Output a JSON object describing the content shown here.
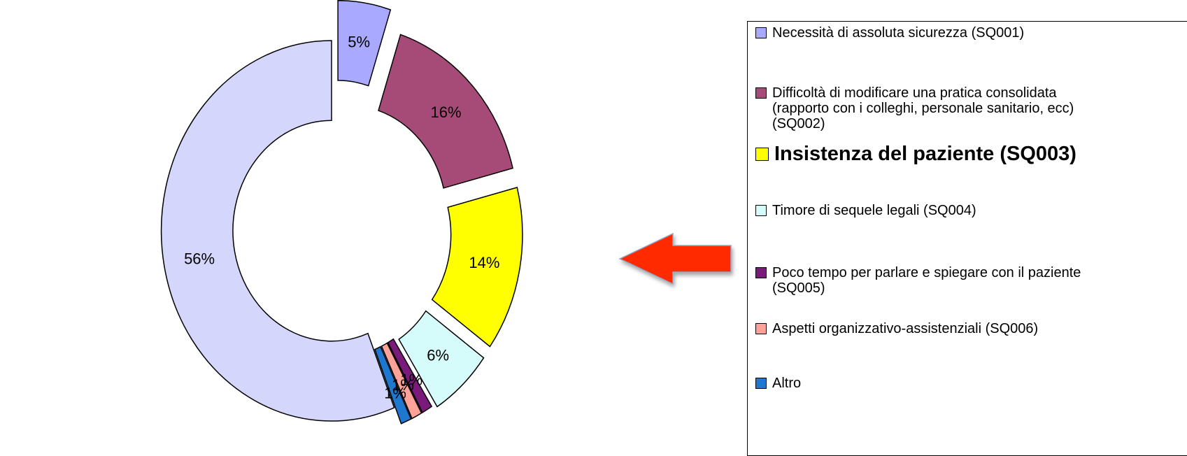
{
  "chart_data": {
    "type": "pie",
    "style": "exploded donut",
    "title": "",
    "legend_position": "right",
    "slices": [
      {
        "label": "Necessità di assoluta sicurezza (SQ001)",
        "value": 5,
        "display": "5%",
        "color": "#A9AAFF"
      },
      {
        "label": "Difficoltà di modificare una pratica consolidata\n(rapporto con i colleghi, personale sanitario, ecc)\n(SQ002)",
        "value": 16,
        "display": "16%",
        "color": "#A64A78"
      },
      {
        "label": "Insistenza del paziente (SQ003)",
        "value": 14,
        "display": "14%",
        "color": "#FFFF00",
        "emphasized": true
      },
      {
        "label": "Timore di sequele legali (SQ004)",
        "value": 6,
        "display": "6%",
        "color": "#D5FBFB"
      },
      {
        "label": "Poco tempo per parlare e spiegare con il paziente\n(SQ005)",
        "value": 1,
        "display": "1%",
        "color": "#7A1A7A"
      },
      {
        "label": "Aspetti organizzativo-assistenziali (SQ006)",
        "value": 1,
        "display": "1%",
        "color": "#FFA29A"
      },
      {
        "label": "Altro",
        "value": 1,
        "display": "1%",
        "color": "#1E78D0"
      },
      {
        "label": "",
        "value": 56,
        "display": "56%",
        "color": "#D5D6FB"
      }
    ]
  },
  "annotation": {
    "arrow_color": "#FF2A00",
    "arrow_target": "Insistenza del paziente (SQ003)"
  }
}
